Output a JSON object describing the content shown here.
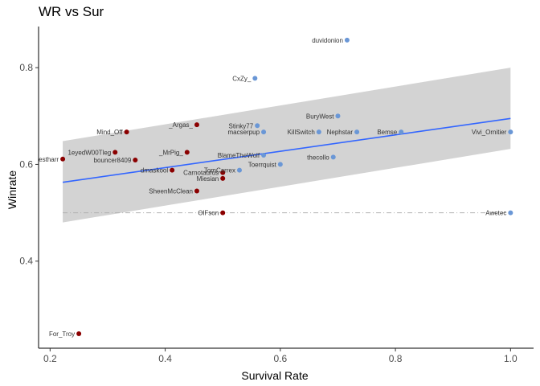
{
  "chart_data": {
    "type": "scatter",
    "title": "WR vs Sur",
    "xlabel": "Survival Rate",
    "ylabel": "Winrate",
    "xlim": [
      0.18,
      1.04
    ],
    "ylim": [
      0.22,
      0.885
    ],
    "x_ticks": [
      "0.2",
      "0.4",
      "0.6",
      "0.8",
      "1.0"
    ],
    "x_tick_values": [
      0.2,
      0.4,
      0.6,
      0.8,
      1.0
    ],
    "y_ticks": [
      "0.4",
      "0.6",
      "0.8"
    ],
    "y_tick_values": [
      0.4,
      0.6,
      0.8
    ],
    "grid": false,
    "reference_line": {
      "y": 0.5,
      "style": "dashed",
      "color": "#b0b0b0"
    },
    "trend": {
      "x": [
        0.222,
        1.0
      ],
      "y": [
        0.563,
        0.695
      ],
      "ci_upper": [
        0.648,
        0.8
      ],
      "ci_lower": [
        0.48,
        0.632
      ],
      "line_color": "#3366ff",
      "band_color": "#d3d3d3"
    },
    "colors": {
      "group_a": "#8b0000",
      "group_b": "#6a97d6"
    },
    "points": [
      {
        "label": "duvidonion",
        "x": 0.716,
        "y": 0.857,
        "group": "b"
      },
      {
        "label": "CxZy_",
        "x": 0.556,
        "y": 0.778,
        "group": "b"
      },
      {
        "label": "BuryWest",
        "x": 0.7,
        "y": 0.7,
        "group": "b"
      },
      {
        "label": "_Argas_",
        "x": 0.455,
        "y": 0.682,
        "group": "a"
      },
      {
        "label": "Stinky77",
        "x": 0.56,
        "y": 0.68,
        "group": "b"
      },
      {
        "label": "macserpup",
        "x": 0.571,
        "y": 0.667,
        "group": "b"
      },
      {
        "label": "Mind_Off",
        "x": 0.333,
        "y": 0.667,
        "group": "a"
      },
      {
        "label": "KillSwitch",
        "x": 0.667,
        "y": 0.667,
        "group": "b"
      },
      {
        "label": "Nephstar",
        "x": 0.733,
        "y": 0.667,
        "group": "b"
      },
      {
        "label": "Bemse",
        "x": 0.81,
        "y": 0.667,
        "group": "b"
      },
      {
        "label": "Vivi_Ornitier",
        "x": 1.0,
        "y": 0.667,
        "group": "b"
      },
      {
        "label": "_MrPig_",
        "x": 0.438,
        "y": 0.625,
        "group": "a"
      },
      {
        "label": "1eyedW00Tleg",
        "x": 0.313,
        "y": 0.625,
        "group": "a"
      },
      {
        "label": "BlameTheWolf",
        "x": 0.571,
        "y": 0.619,
        "group": "b"
      },
      {
        "label": "thecollo",
        "x": 0.692,
        "y": 0.615,
        "group": "b"
      },
      {
        "label": "estharr",
        "x": 0.222,
        "y": 0.611,
        "group": "a"
      },
      {
        "label": "bouncer8409",
        "x": 0.348,
        "y": 0.609,
        "group": "a"
      },
      {
        "label": "Toerrquist",
        "x": 0.6,
        "y": 0.6,
        "group": "b"
      },
      {
        "label": "TomCarrex",
        "x": 0.529,
        "y": 0.588,
        "group": "b"
      },
      {
        "label": "dmaskool",
        "x": 0.412,
        "y": 0.588,
        "group": "a"
      },
      {
        "label": "Carnotaurus",
        "x": 0.5,
        "y": 0.583,
        "group": "a"
      },
      {
        "label": "Miesian",
        "x": 0.5,
        "y": 0.571,
        "group": "a"
      },
      {
        "label": "SheenMcClean",
        "x": 0.455,
        "y": 0.545,
        "group": "a"
      },
      {
        "label": "OlFson",
        "x": 0.5,
        "y": 0.5,
        "group": "a"
      },
      {
        "label": "Awetec",
        "x": 1.0,
        "y": 0.5,
        "group": "b"
      },
      {
        "label": "For_Troy",
        "x": 0.25,
        "y": 0.25,
        "group": "a"
      }
    ]
  }
}
